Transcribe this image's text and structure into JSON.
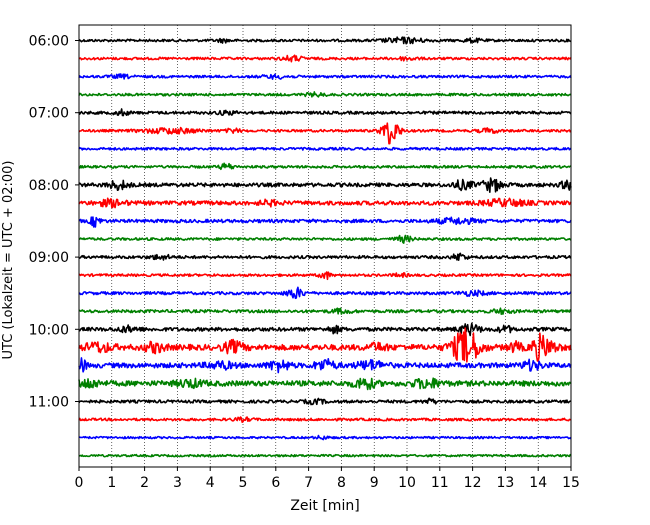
{
  "chart_data": {
    "type": "line",
    "subtype": "seismogram-helicorder",
    "xlabel": "Zeit  [min]",
    "ylabel": "UTC (Lokalzeit = UTC + 02:00)",
    "xlim": [
      0,
      15
    ],
    "xticks": [
      "0",
      "1",
      "2",
      "3",
      "4",
      "5",
      "6",
      "7",
      "8",
      "9",
      "10",
      "11",
      "12",
      "13",
      "14",
      "15"
    ],
    "grid": "vertical dotted lines at each minute",
    "yticks": [
      {
        "label": "06:00",
        "trace_index": 0
      },
      {
        "label": "07:00",
        "trace_index": 4
      },
      {
        "label": "08:00",
        "trace_index": 8
      },
      {
        "label": "09:00",
        "trace_index": 12
      },
      {
        "label": "10:00",
        "trace_index": 16
      },
      {
        "label": "11:00",
        "trace_index": 20
      }
    ],
    "trace_minutes": 15,
    "trace_colors": [
      "#000000",
      "#ff0000",
      "#0000ff",
      "#008000"
    ],
    "traces": [
      {
        "start": "06:00",
        "color": "#000000",
        "noise": 1.2,
        "events": [
          {
            "t": 9.9,
            "amp": 2.5,
            "w": 0.6
          },
          {
            "t": 4.4,
            "amp": 1.5,
            "w": 0.2
          },
          {
            "t": 12.0,
            "amp": 1.5,
            "w": 0.3
          }
        ]
      },
      {
        "start": "06:15",
        "color": "#ff0000",
        "noise": 1.2,
        "events": [
          {
            "t": 6.5,
            "amp": 2.5,
            "w": 0.3
          },
          {
            "t": 10.0,
            "amp": 1.5,
            "w": 0.3
          }
        ]
      },
      {
        "start": "06:30",
        "color": "#0000ff",
        "noise": 1.2,
        "events": [
          {
            "t": 1.3,
            "amp": 1.5,
            "w": 0.3
          },
          {
            "t": 6.0,
            "amp": 1.5,
            "w": 0.4
          }
        ]
      },
      {
        "start": "06:45",
        "color": "#008000",
        "noise": 1.2,
        "events": [
          {
            "t": 7.2,
            "amp": 1.5,
            "w": 0.3
          }
        ]
      },
      {
        "start": "07:00",
        "color": "#000000",
        "noise": 1.4,
        "events": [
          {
            "t": 1.3,
            "amp": 2.5,
            "w": 0.2
          },
          {
            "t": 4.5,
            "amp": 1.5,
            "w": 0.3
          }
        ]
      },
      {
        "start": "07:15",
        "color": "#ff0000",
        "noise": 1.2,
        "events": [
          {
            "t": 2.8,
            "amp": 2.5,
            "w": 0.8
          },
          {
            "t": 4.7,
            "amp": 2,
            "w": 0.2
          },
          {
            "t": 9.5,
            "amp": 13,
            "w": 0.25
          },
          {
            "t": 12.5,
            "amp": 2,
            "w": 0.3
          }
        ]
      },
      {
        "start": "07:30",
        "color": "#0000ff",
        "noise": 1.2,
        "events": []
      },
      {
        "start": "07:45",
        "color": "#008000",
        "noise": 1.2,
        "events": [
          {
            "t": 4.5,
            "amp": 3,
            "w": 0.2
          }
        ]
      },
      {
        "start": "08:00",
        "color": "#000000",
        "noise": 1.8,
        "events": [
          {
            "t": 1.2,
            "amp": 4,
            "w": 0.3
          },
          {
            "t": 11.7,
            "amp": 4,
            "w": 0.3
          },
          {
            "t": 12.6,
            "amp": 6,
            "w": 0.3
          },
          {
            "t": 14.9,
            "amp": 4,
            "w": 0.2
          }
        ]
      },
      {
        "start": "08:15",
        "color": "#ff0000",
        "noise": 2.0,
        "events": [
          {
            "t": 1.0,
            "amp": 3,
            "w": 0.4
          },
          {
            "t": 5.8,
            "amp": 2,
            "w": 0.3
          },
          {
            "t": 13.0,
            "amp": 3,
            "w": 0.6
          }
        ]
      },
      {
        "start": "08:30",
        "color": "#0000ff",
        "noise": 1.6,
        "events": [
          {
            "t": 0.5,
            "amp": 5,
            "w": 0.15
          },
          {
            "t": 11.5,
            "amp": 2.5,
            "w": 0.6
          }
        ]
      },
      {
        "start": "08:45",
        "color": "#008000",
        "noise": 1.2,
        "events": [
          {
            "t": 9.9,
            "amp": 3,
            "w": 0.25
          }
        ]
      },
      {
        "start": "09:00",
        "color": "#000000",
        "noise": 1.4,
        "events": [
          {
            "t": 2.5,
            "amp": 2,
            "w": 0.3
          },
          {
            "t": 11.6,
            "amp": 3.5,
            "w": 0.2
          }
        ]
      },
      {
        "start": "09:15",
        "color": "#ff0000",
        "noise": 1.2,
        "events": [
          {
            "t": 7.5,
            "amp": 4,
            "w": 0.15
          },
          {
            "t": 9.8,
            "amp": 1.5,
            "w": 0.2
          }
        ]
      },
      {
        "start": "09:30",
        "color": "#0000ff",
        "noise": 1.4,
        "events": [
          {
            "t": 6.6,
            "amp": 5,
            "w": 0.25
          },
          {
            "t": 12.0,
            "amp": 2,
            "w": 0.4
          }
        ]
      },
      {
        "start": "09:45",
        "color": "#008000",
        "noise": 1.4,
        "events": [
          {
            "t": 8.0,
            "amp": 2,
            "w": 0.3
          },
          {
            "t": 12.9,
            "amp": 2,
            "w": 0.3
          }
        ]
      },
      {
        "start": "10:00",
        "color": "#000000",
        "noise": 1.8,
        "events": [
          {
            "t": 1.5,
            "amp": 2.5,
            "w": 0.3
          },
          {
            "t": 7.8,
            "amp": 3,
            "w": 0.2
          },
          {
            "t": 11.9,
            "amp": 5,
            "w": 0.3
          },
          {
            "t": 13.0,
            "amp": 3,
            "w": 0.2
          }
        ]
      },
      {
        "start": "10:15",
        "color": "#ff0000",
        "noise": 2.8,
        "events": [
          {
            "t": 0.6,
            "amp": 4,
            "w": 0.4
          },
          {
            "t": 2.3,
            "amp": 4,
            "w": 0.3
          },
          {
            "t": 4.7,
            "amp": 5,
            "w": 0.3
          },
          {
            "t": 9.1,
            "amp": 3,
            "w": 0.3
          },
          {
            "t": 11.8,
            "amp": 17,
            "w": 0.4
          },
          {
            "t": 13.3,
            "amp": 4,
            "w": 0.2
          },
          {
            "t": 14.0,
            "amp": 9,
            "w": 0.2
          },
          {
            "t": 14.3,
            "amp": 6,
            "w": 0.3
          }
        ]
      },
      {
        "start": "10:30",
        "color": "#0000ff",
        "noise": 2.4,
        "events": [
          {
            "t": 0.1,
            "amp": 7,
            "w": 0.1
          },
          {
            "t": 4.3,
            "amp": 3,
            "w": 0.4
          },
          {
            "t": 6.1,
            "amp": 5,
            "w": 0.3
          },
          {
            "t": 7.5,
            "amp": 5,
            "w": 0.3
          },
          {
            "t": 8.9,
            "amp": 4,
            "w": 0.4
          },
          {
            "t": 13.8,
            "amp": 4,
            "w": 0.3
          }
        ]
      },
      {
        "start": "10:45",
        "color": "#008000",
        "noise": 2.6,
        "events": [
          {
            "t": 0.3,
            "amp": 4,
            "w": 0.3
          },
          {
            "t": 3.4,
            "amp": 3,
            "w": 0.4
          },
          {
            "t": 8.7,
            "amp": 5,
            "w": 0.3
          },
          {
            "t": 10.6,
            "amp": 4,
            "w": 0.4
          }
        ]
      },
      {
        "start": "11:00",
        "color": "#000000",
        "noise": 1.4,
        "events": [
          {
            "t": 7.2,
            "amp": 2,
            "w": 0.3
          },
          {
            "t": 10.7,
            "amp": 2,
            "w": 0.2
          }
        ]
      },
      {
        "start": "11:15",
        "color": "#ff0000",
        "noise": 1.2,
        "events": [
          {
            "t": 5.0,
            "amp": 1.5,
            "w": 0.3
          }
        ]
      },
      {
        "start": "11:30",
        "color": "#0000ff",
        "noise": 1.0,
        "events": [
          {
            "t": 7.4,
            "amp": 1.5,
            "w": 0.2
          }
        ]
      },
      {
        "start": "11:45",
        "color": "#008000",
        "noise": 1.0,
        "events": []
      }
    ]
  }
}
